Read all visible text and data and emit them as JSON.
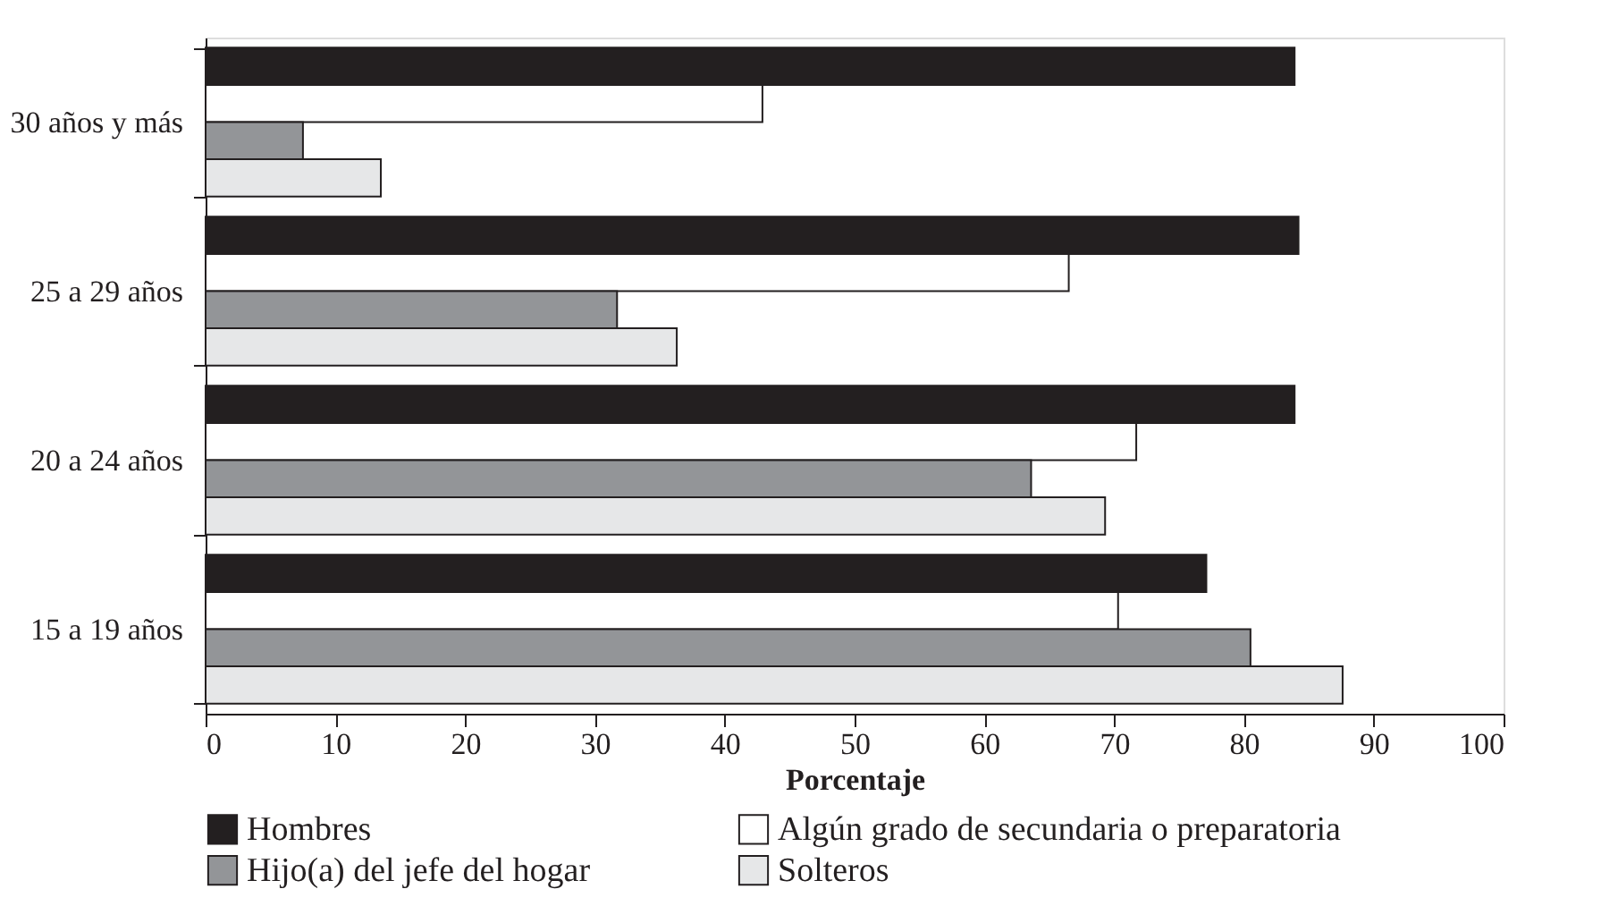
{
  "chart_data": {
    "type": "bar",
    "orientation": "horizontal",
    "xlabel": "Porcentaje",
    "categories": [
      "30 años y más",
      "25 a 29 años",
      "20 a 24 años",
      "15 a 19 años"
    ],
    "series": [
      {
        "name": "Hombres",
        "color": "#231f20",
        "values": [
          83.9,
          84.2,
          83.9,
          77.1
        ]
      },
      {
        "name": "Algún grado de secundaria o preparatoria",
        "color": "#ffffff",
        "values": [
          42.9,
          66.5,
          71.7,
          70.3
        ]
      },
      {
        "name": "Hijo(a) del jefe del hogar",
        "color": "#939598",
        "values": [
          7.5,
          31.7,
          63.6,
          80.5
        ]
      },
      {
        "name": "Solteros",
        "color": "#e6e7e8",
        "values": [
          13.5,
          36.3,
          69.3,
          87.6
        ]
      }
    ],
    "xlim": [
      0,
      100
    ],
    "xticks": [
      0,
      10,
      20,
      30,
      40,
      50,
      60,
      70,
      80,
      90,
      100
    ],
    "grid": false,
    "legend": "bottom"
  }
}
